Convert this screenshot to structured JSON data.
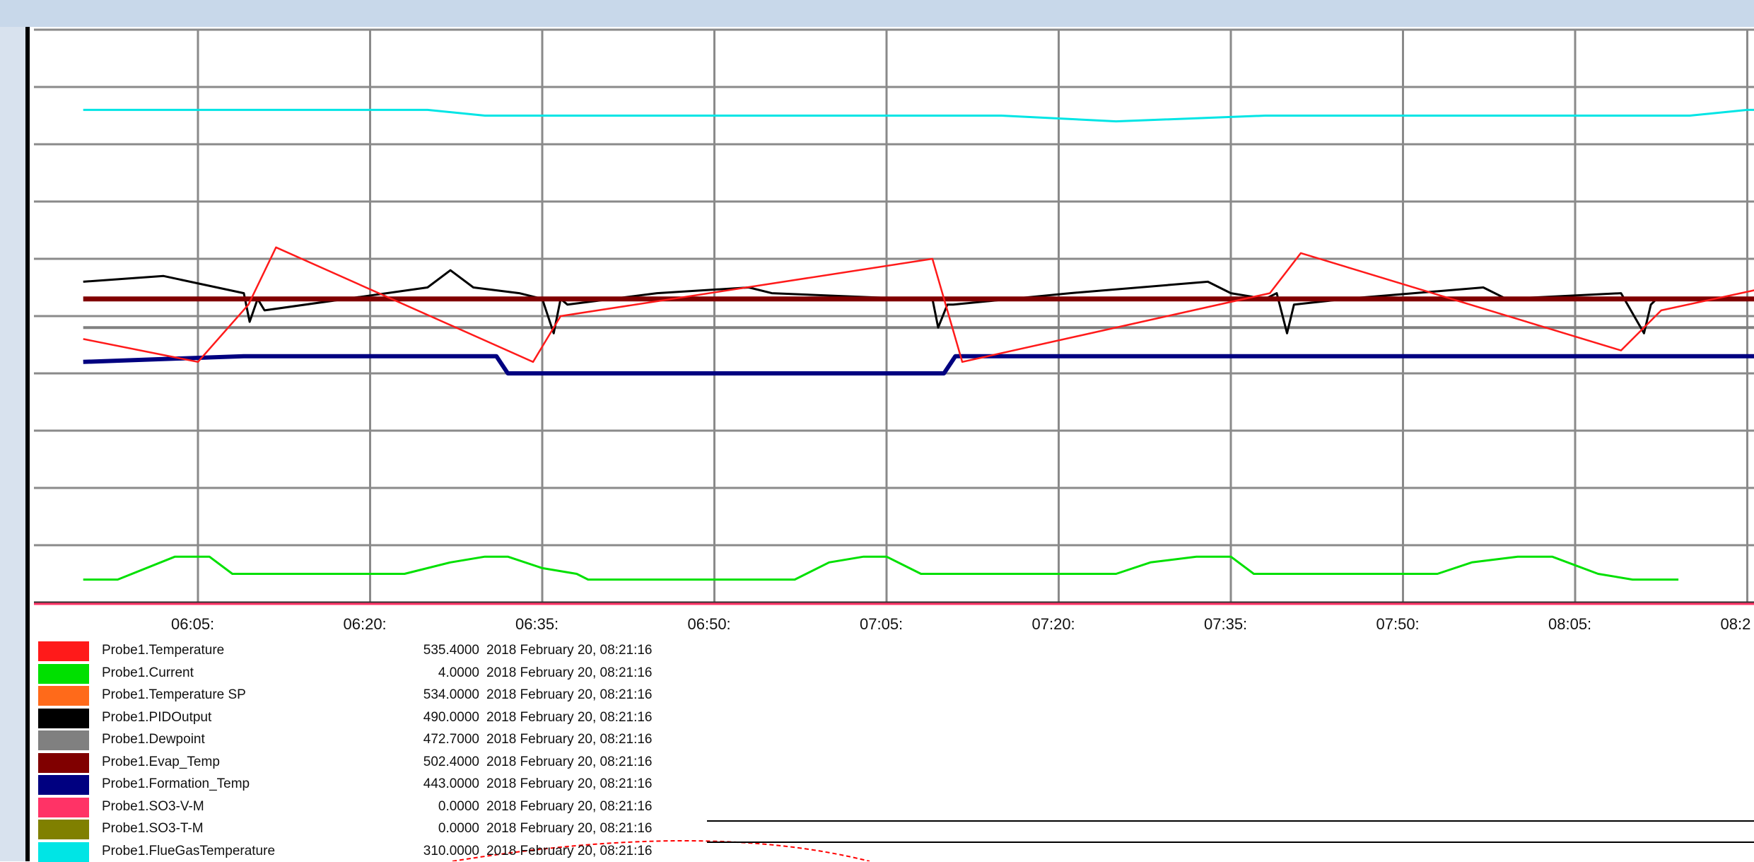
{
  "chart_data": {
    "type": "line",
    "x_ticks": [
      "06:05:",
      "06:20:",
      "06:35:",
      "06:50:",
      "07:05:",
      "07:20:",
      "07:35:",
      "07:50:",
      "08:05:",
      "08:2"
    ],
    "y_range": [
      0,
      10
    ],
    "grid": true,
    "legend_position": "bottom",
    "series": [
      {
        "name": "Probe1.Temperature",
        "color": "#ff1a1a",
        "value_label": "535.4000",
        "date_label": "2018 February 20, 08:21:16",
        "x": [
          0,
          10,
          14.4,
          16.8,
          39.2,
          41.6,
          74,
          76.6,
          103.4,
          106.1,
          134,
          137.5,
          160.6,
          163.2,
          190
        ],
        "y": [
          4.6,
          4.2,
          5.2,
          6.2,
          4.2,
          5.0,
          6.0,
          4.2,
          5.4,
          6.1,
          4.4,
          5.1,
          6.1,
          4.4,
          5.4
        ]
      },
      {
        "name": "Probe1.Current",
        "color": "#00e000",
        "value_label": "4.0000",
        "date_label": "2018 February 20, 08:21:16",
        "x": [
          0,
          3,
          8,
          11,
          13,
          17,
          28,
          32,
          35,
          37,
          40,
          43,
          44,
          50,
          62,
          65,
          68,
          70,
          73,
          75,
          76,
          82,
          90,
          93,
          97,
          100,
          102,
          105,
          108,
          118,
          121,
          125,
          128,
          132,
          135,
          139
        ],
        "y": [
          0.4,
          0.4,
          0.8,
          0.8,
          0.5,
          0.5,
          0.5,
          0.7,
          0.8,
          0.8,
          0.6,
          0.5,
          0.4,
          0.4,
          0.4,
          0.7,
          0.8,
          0.8,
          0.5,
          0.5,
          0.5,
          0.5,
          0.5,
          0.7,
          0.8,
          0.8,
          0.5,
          0.5,
          0.5,
          0.5,
          0.7,
          0.8,
          0.8,
          0.5,
          0.4,
          0.4
        ]
      },
      {
        "name": "Probe1.Temperature SP",
        "color": "#ff6a1a",
        "value_label": "534.0000",
        "date_label": "2018 February 20, 08:21:16",
        "x": [
          0,
          190
        ],
        "y": [
          5.3,
          5.3
        ]
      },
      {
        "name": "Probe1.PIDOutput",
        "color": "#000000",
        "value_label": "490.0000",
        "date_label": "2018 February 20, 08:21:16",
        "x": [
          0,
          7,
          14,
          14.5,
          15.2,
          15.8,
          30,
          32,
          34,
          38,
          40,
          41,
          41.6,
          42.2,
          50,
          58,
          60,
          72,
          74,
          74.5,
          75.3,
          75.8,
          86,
          98,
          100,
          103,
          104,
          104.9,
          105.5,
          110,
          122,
          124,
          134,
          136,
          136.6,
          137.1,
          144
        ],
        "y": [
          5.6,
          5.7,
          5.4,
          4.9,
          5.3,
          5.1,
          5.5,
          5.8,
          5.5,
          5.4,
          5.3,
          4.7,
          5.3,
          5.2,
          5.4,
          5.5,
          5.4,
          5.3,
          5.3,
          4.8,
          5.2,
          5.2,
          5.4,
          5.6,
          5.4,
          5.3,
          5.4,
          4.7,
          5.2,
          5.3,
          5.5,
          5.3,
          5.4,
          4.7,
          5.2,
          5.3,
          5.3
        ]
      },
      {
        "name": "Probe1.Dewpoint",
        "color": "#808080",
        "value_label": "472.7000",
        "date_label": "2018 February 20, 08:21:16",
        "x": [
          0,
          190
        ],
        "y": [
          4.8,
          4.8
        ]
      },
      {
        "name": "Probe1.Evap_Temp",
        "color": "#800000",
        "value_label": "502.4000",
        "date_label": "2018 February 20, 08:21:16",
        "x": [
          0,
          190
        ],
        "y": [
          5.3,
          5.3
        ]
      },
      {
        "name": "Probe1.Formation_Temp",
        "color": "#000080",
        "value_label": "443.0000",
        "date_label": "2018 February 20, 08:21:16",
        "x": [
          0,
          14,
          36,
          37,
          75,
          76,
          190
        ],
        "y": [
          4.2,
          4.3,
          4.3,
          4.0,
          4.0,
          4.3,
          4.3
        ]
      },
      {
        "name": "Probe1.SO3-V-M",
        "color": "#ff3366",
        "value_label": "0.0000",
        "date_label": "2018 February 20, 08:21:16",
        "x": [
          0,
          190
        ],
        "y": [
          0,
          0
        ]
      },
      {
        "name": "Probe1.SO3-T-M",
        "color": "#808000",
        "value_label": "0.0000",
        "date_label": "2018 February 20, 08:21:16",
        "x": [],
        "y": []
      },
      {
        "name": "Probe1.FlueGasTemperature",
        "color": "#00e5e5",
        "value_label": "310.0000",
        "date_label": "2018 February 20, 08:21:16",
        "x": [
          0,
          14,
          30,
          35,
          48,
          68,
          80,
          90,
          103,
          125,
          140,
          145,
          150,
          190
        ],
        "y": [
          8.6,
          8.6,
          8.6,
          8.5,
          8.5,
          8.5,
          8.5,
          8.4,
          8.5,
          8.5,
          8.5,
          8.6,
          8.6,
          8.6
        ]
      }
    ]
  }
}
